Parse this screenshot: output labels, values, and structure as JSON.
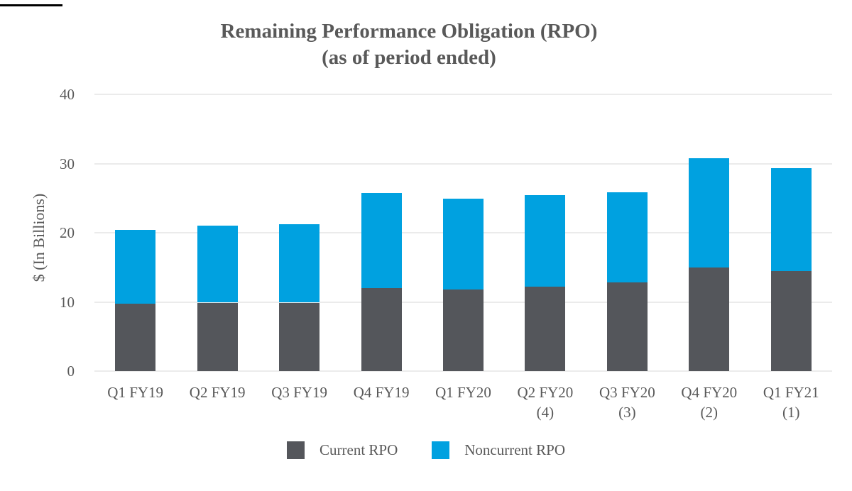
{
  "title": {
    "line1": "Remaining Performance Obligation (RPO)",
    "line2": "(as of period ended)"
  },
  "y_axis": {
    "title": "$ (In Billions)"
  },
  "legend": {
    "items": [
      {
        "label": "Current RPO",
        "color": "#54565B"
      },
      {
        "label": "Noncurrent RPO",
        "color": "#00A1E0"
      }
    ]
  },
  "colors": {
    "text": "#595959",
    "gridline": "#EBEBEB",
    "current": "#54565B",
    "noncurrent": "#00A1E0",
    "artifact_line": "#000000"
  },
  "chart_data": {
    "type": "bar",
    "stacked": true,
    "title": "Remaining Performance Obligation (RPO) (as of period ended)",
    "ylabel": "$ (In Billions)",
    "ylim": [
      0,
      40
    ],
    "yticks": [
      0,
      10,
      20,
      30,
      40
    ],
    "grid": true,
    "legend_position": "bottom",
    "categories": [
      "Q1 FY19",
      "Q2 FY19",
      "Q3 FY19",
      "Q4 FY19",
      "Q1 FY20",
      "Q2 FY20",
      "Q3 FY20",
      "Q4 FY20",
      "Q1 FY21"
    ],
    "category_footnotes": [
      "",
      "",
      "",
      "",
      "",
      "(4)",
      "(3)",
      "(2)",
      "(1)"
    ],
    "series": [
      {
        "name": "Current RPO",
        "color": "#54565B",
        "values": [
          9.7,
          9.9,
          9.9,
          12.0,
          11.8,
          12.2,
          12.8,
          15.0,
          14.5
        ]
      },
      {
        "name": "Noncurrent RPO",
        "color": "#00A1E0",
        "values": [
          10.7,
          11.1,
          11.3,
          13.7,
          13.1,
          13.2,
          13.1,
          15.8,
          14.8
        ]
      }
    ],
    "totals": [
      20.4,
      21.0,
      21.2,
      25.7,
      24.9,
      25.4,
      25.9,
      30.8,
      29.3
    ]
  }
}
